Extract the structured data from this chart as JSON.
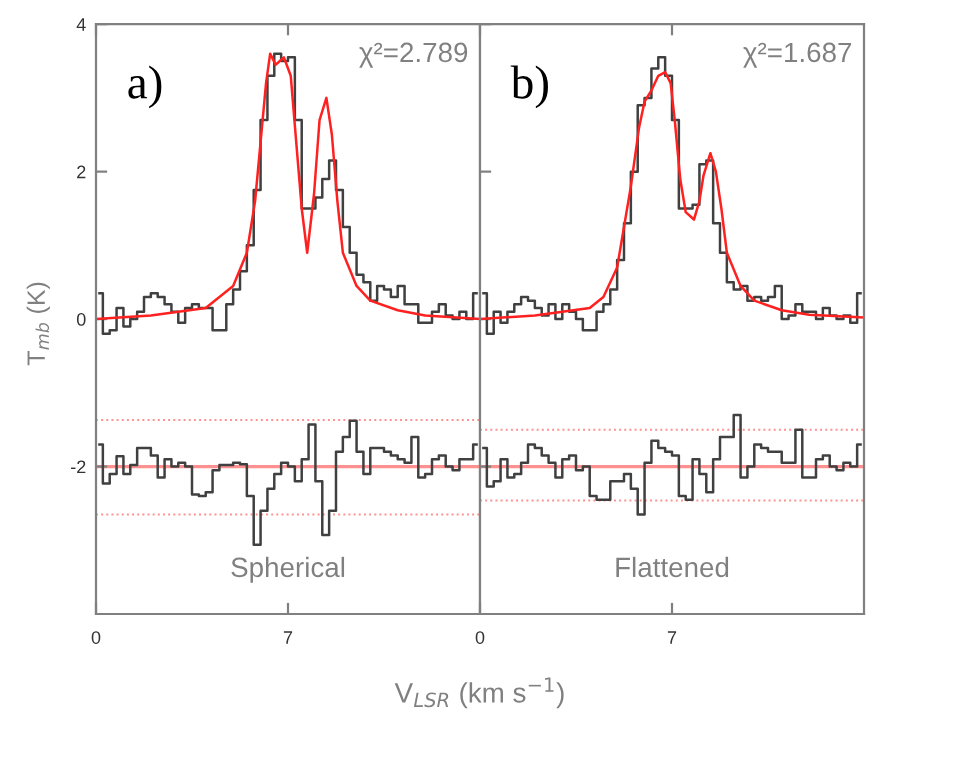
{
  "chart_data": [
    {
      "type": "step",
      "xlabel": "V$_{LSR}$ (km s$^{−1}$)",
      "ylabel": "T$_{mb}$ (K)",
      "annotations": [
        "a)",
        "χ²=2.789",
        "Spherical"
      ],
      "xlim": [
        0,
        14
      ],
      "xticks": [
        0,
        7
      ],
      "ylim": [
        -4,
        4
      ],
      "yticks": [
        -2,
        0,
        2,
        4
      ],
      "grid": false,
      "line_style": "solid",
      "marker": "none",
      "series": [
        {
          "color": "#404040",
          "x": [
            0.125,
            0.375,
            0.625,
            0.875,
            1.125,
            1.375,
            1.625,
            1.875,
            2.125,
            2.375,
            2.625,
            2.875,
            3.125,
            3.375,
            3.625,
            3.875,
            4.125,
            4.375,
            4.625,
            4.875,
            5.125,
            5.375,
            5.625,
            5.875,
            6.125,
            6.375,
            6.625,
            6.875,
            7.125,
            7.375,
            7.625,
            7.875,
            8.125,
            8.375,
            8.625,
            8.875,
            9.125,
            9.375,
            9.625,
            9.875,
            10.125,
            10.375,
            10.625,
            10.875,
            11.125,
            11.375,
            11.625,
            11.875,
            12.125,
            12.375,
            12.625,
            12.875,
            13.125,
            13.375,
            13.625,
            13.875
          ],
          "values": [
            0.35,
            -0.2,
            -0.15,
            0.15,
            -0.1,
            0.0,
            0.1,
            0.3,
            0.35,
            0.3,
            0.2,
            0.1,
            -0.05,
            0.15,
            0.2,
            0.15,
            0.15,
            -0.15,
            -0.15,
            0.2,
            0.4,
            0.65,
            1.0,
            1.75,
            2.7,
            3.3,
            3.6,
            3.5,
            3.55,
            2.7,
            1.5,
            1.5,
            1.65,
            1.9,
            2.15,
            1.75,
            1.25,
            0.9,
            0.6,
            0.5,
            0.25,
            0.45,
            0.4,
            0.3,
            0.45,
            0.2,
            0.2,
            -0.05,
            -0.05,
            0.1,
            0.2,
            0.05,
            0.0,
            0.1,
            0.0,
            0.35
          ]
        },
        {
          "type": "line",
          "color": "#ff2020",
          "x": [
            0,
            2,
            4,
            5,
            5.5,
            5.8,
            6.0,
            6.2,
            6.35,
            6.55,
            6.85,
            7.1,
            7.3,
            7.5,
            7.7,
            7.95,
            8.15,
            8.4,
            8.6,
            8.8,
            9.0,
            9.5,
            10,
            11,
            12,
            14
          ],
          "values": [
            0.0,
            0.05,
            0.15,
            0.45,
            0.9,
            1.6,
            2.4,
            3.2,
            3.6,
            3.45,
            3.55,
            3.3,
            2.4,
            1.5,
            0.9,
            1.7,
            2.7,
            3.0,
            2.5,
            1.6,
            0.9,
            0.45,
            0.25,
            0.12,
            0.05,
            0.0
          ]
        },
        {
          "type": "step",
          "color": "#404040",
          "x": [
            0.125,
            0.375,
            0.625,
            0.875,
            1.125,
            1.375,
            1.625,
            1.875,
            2.125,
            2.375,
            2.625,
            2.875,
            3.125,
            3.375,
            3.625,
            3.875,
            4.125,
            4.375,
            4.625,
            4.875,
            5.125,
            5.375,
            5.625,
            5.875,
            6.125,
            6.375,
            6.625,
            6.875,
            7.125,
            7.375,
            7.625,
            7.875,
            8.125,
            8.375,
            8.625,
            8.875,
            9.125,
            9.375,
            9.625,
            9.875,
            10.125,
            10.375,
            10.625,
            10.875,
            11.125,
            11.375,
            11.625,
            11.875,
            12.125,
            12.375,
            12.625,
            12.875,
            13.125,
            13.375,
            13.625,
            13.875
          ],
          "values": [
            -1.7,
            -2.23,
            -2.1,
            -1.86,
            -2.1,
            -1.98,
            -1.75,
            -1.75,
            -1.85,
            -2.15,
            -1.9,
            -2.0,
            -1.95,
            -2.0,
            -2.38,
            -2.4,
            -2.35,
            -2.05,
            -1.98,
            -1.98,
            -1.95,
            -1.97,
            -2.4,
            -3.06,
            -2.6,
            -2.3,
            -2.1,
            -1.95,
            -2.0,
            -2.2,
            -1.9,
            -1.43,
            -2.2,
            -2.93,
            -2.6,
            -1.8,
            -1.6,
            -1.38,
            -1.8,
            -2.1,
            -1.75,
            -1.75,
            -1.8,
            -1.85,
            -1.9,
            -1.95,
            -1.6,
            -2.15,
            -2.1,
            -1.9,
            -1.85,
            -2.0,
            -2.05,
            -1.9,
            -1.9,
            -1.7
          ]
        }
      ],
      "ref_lines": [
        {
          "axis": "y",
          "value": -2,
          "color": "#ff9090",
          "line_style": "solid"
        },
        {
          "axis": "y",
          "value": -1.37,
          "color": "#ff9090",
          "line_style": "dotted"
        },
        {
          "axis": "y",
          "value": -2.65,
          "color": "#ff9090",
          "line_style": "dotted"
        }
      ]
    },
    {
      "type": "step",
      "annotations": [
        "b)",
        "χ²=1.687",
        "Flattened"
      ],
      "xlim": [
        0,
        14
      ],
      "xticks": [
        0,
        7
      ],
      "ylim": [
        -4,
        4
      ],
      "yticks": [
        -2,
        0,
        2,
        4
      ],
      "tick_labels": "x",
      "grid": false,
      "line_style": "solid",
      "marker": "none",
      "series": [
        {
          "color": "#404040",
          "x": [
            0.125,
            0.375,
            0.625,
            0.875,
            1.125,
            1.375,
            1.625,
            1.875,
            2.125,
            2.375,
            2.625,
            2.875,
            3.125,
            3.375,
            3.625,
            3.875,
            4.125,
            4.375,
            4.625,
            4.875,
            5.125,
            5.375,
            5.625,
            5.875,
            6.125,
            6.375,
            6.625,
            6.875,
            7.125,
            7.375,
            7.625,
            7.875,
            8.125,
            8.375,
            8.625,
            8.875,
            9.125,
            9.375,
            9.625,
            9.875,
            10.125,
            10.375,
            10.625,
            10.875,
            11.125,
            11.375,
            11.625,
            11.875,
            12.125,
            12.375,
            12.625,
            12.875,
            13.125,
            13.375,
            13.625,
            13.875
          ],
          "values": [
            0.35,
            -0.2,
            0.1,
            -0.05,
            0.1,
            0.2,
            0.3,
            0.25,
            0.15,
            0.05,
            0.2,
            0.0,
            0.2,
            0.1,
            0.0,
            -0.15,
            -0.15,
            0.1,
            0.2,
            0.4,
            0.8,
            1.3,
            2.0,
            2.9,
            3.0,
            3.4,
            3.55,
            3.3,
            2.7,
            1.5,
            1.5,
            1.55,
            2.1,
            2.15,
            1.3,
            0.9,
            0.5,
            0.4,
            0.45,
            0.25,
            0.3,
            0.25,
            0.3,
            0.45,
            0.0,
            0.05,
            0.2,
            0.1,
            0.1,
            0.0,
            0.15,
            0.05,
            0.0,
            0.05,
            -0.05,
            0.35
          ]
        },
        {
          "type": "line",
          "color": "#ff2020",
          "x": [
            0,
            2,
            4,
            4.5,
            5,
            5.5,
            5.8,
            6.0,
            6.25,
            6.5,
            6.75,
            6.95,
            7.1,
            7.3,
            7.5,
            7.8,
            8.0,
            8.15,
            8.4,
            8.6,
            8.8,
            9.0,
            9.5,
            10,
            11,
            12,
            14
          ],
          "values": [
            0.0,
            0.05,
            0.15,
            0.3,
            0.7,
            1.8,
            2.6,
            2.95,
            3.1,
            3.3,
            3.35,
            3.2,
            2.7,
            1.9,
            1.45,
            1.35,
            1.6,
            1.95,
            2.25,
            2.0,
            1.5,
            0.9,
            0.45,
            0.25,
            0.12,
            0.06,
            0.02
          ]
        },
        {
          "type": "step",
          "color": "#404040",
          "x": [
            0.125,
            0.375,
            0.625,
            0.875,
            1.125,
            1.375,
            1.625,
            1.875,
            2.125,
            2.375,
            2.625,
            2.875,
            3.125,
            3.375,
            3.625,
            3.875,
            4.125,
            4.375,
            4.625,
            4.875,
            5.125,
            5.375,
            5.625,
            5.875,
            6.125,
            6.375,
            6.625,
            6.875,
            7.125,
            7.375,
            7.625,
            7.875,
            8.125,
            8.375,
            8.625,
            8.875,
            9.125,
            9.375,
            9.625,
            9.875,
            10.125,
            10.375,
            10.625,
            10.875,
            11.125,
            11.375,
            11.625,
            11.875,
            12.125,
            12.375,
            12.625,
            12.875,
            13.125,
            13.375,
            13.625,
            13.875
          ],
          "values": [
            -1.75,
            -2.27,
            -2.2,
            -1.9,
            -2.15,
            -2.1,
            -1.95,
            -1.7,
            -1.75,
            -1.85,
            -1.95,
            -2.15,
            -1.9,
            -1.85,
            -2.05,
            -2.0,
            -2.4,
            -2.45,
            -2.45,
            -2.2,
            -2.2,
            -2.1,
            -2.3,
            -2.65,
            -1.95,
            -1.65,
            -1.75,
            -1.8,
            -1.85,
            -2.4,
            -2.45,
            -1.9,
            -2.1,
            -2.35,
            -1.9,
            -1.6,
            -1.6,
            -1.3,
            -2.15,
            -2.0,
            -1.7,
            -1.75,
            -1.8,
            -1.8,
            -1.95,
            -1.95,
            -1.5,
            -2.15,
            -2.15,
            -1.9,
            -1.85,
            -2.0,
            -2.05,
            -1.95,
            -2.0,
            -1.7
          ]
        }
      ],
      "ref_lines": [
        {
          "axis": "y",
          "value": -2,
          "color": "#ff9090",
          "line_style": "solid"
        },
        {
          "axis": "y",
          "value": -1.5,
          "color": "#ff9090",
          "line_style": "dotted"
        },
        {
          "axis": "y",
          "value": -2.46,
          "color": "#ff9090",
          "line_style": "dotted"
        }
      ]
    }
  ]
}
